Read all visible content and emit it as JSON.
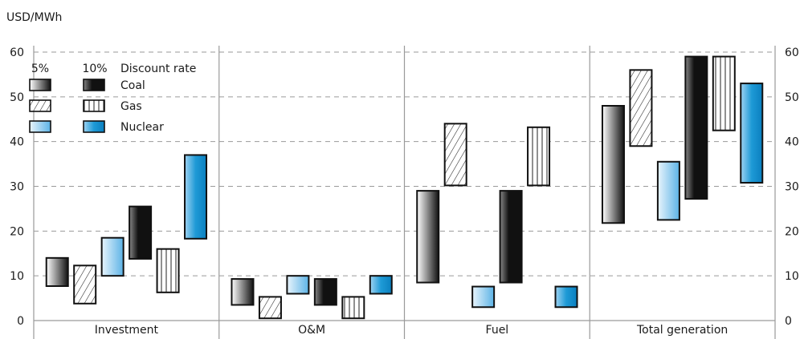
{
  "chart_data": {
    "type": "bar",
    "subtype": "floating-range",
    "unit_label": "USD/MWh",
    "ylim": [
      0,
      60
    ],
    "yticks": [
      0,
      10,
      20,
      30,
      40,
      50,
      60
    ],
    "grid": "horizontal-dashed",
    "legend": {
      "placement": "top-left",
      "headers": [
        "5%",
        "10%"
      ],
      "title": "Discount rate",
      "entries": [
        "Coal",
        "Gas",
        "Nuclear"
      ]
    },
    "categories": [
      "Investment",
      "O&M",
      "Fuel",
      "Total generation"
    ],
    "discount_rates": [
      "5%",
      "10%"
    ],
    "series": [
      {
        "name": "Coal",
        "color": "#1a1a1a",
        "rate": "5%",
        "ranges": [
          [
            7.7,
            14
          ],
          [
            3.5,
            9.3
          ],
          [
            8.5,
            29
          ],
          [
            21.8,
            48
          ]
        ]
      },
      {
        "name": "Gas",
        "color": "#ffffff",
        "rate": "5%",
        "ranges": [
          [
            3.8,
            12.3
          ],
          [
            0.5,
            5.3
          ],
          [
            30.2,
            44
          ],
          [
            39,
            56
          ]
        ]
      },
      {
        "name": "Nuclear",
        "color": "#a8d4f2",
        "rate": "5%",
        "ranges": [
          [
            10,
            18.5
          ],
          [
            6,
            10
          ],
          [
            3,
            7.6
          ],
          [
            22.5,
            35.5
          ]
        ]
      },
      {
        "name": "Coal",
        "color": "#1a1a1a",
        "rate": "10%",
        "ranges": [
          [
            13.8,
            25.5
          ],
          [
            3.5,
            9.3
          ],
          [
            8.5,
            29
          ],
          [
            27.2,
            59
          ]
        ]
      },
      {
        "name": "Gas",
        "color": "#ffffff",
        "rate": "10%",
        "ranges": [
          [
            6.3,
            16
          ],
          [
            0.5,
            5.3
          ],
          [
            30.2,
            43.2
          ],
          [
            42.5,
            59
          ]
        ]
      },
      {
        "name": "Nuclear",
        "color": "#1e9ad6",
        "rate": "10%",
        "ranges": [
          [
            18.3,
            37
          ],
          [
            6,
            10
          ],
          [
            3,
            7.6
          ],
          [
            30.8,
            53
          ]
        ]
      }
    ]
  }
}
